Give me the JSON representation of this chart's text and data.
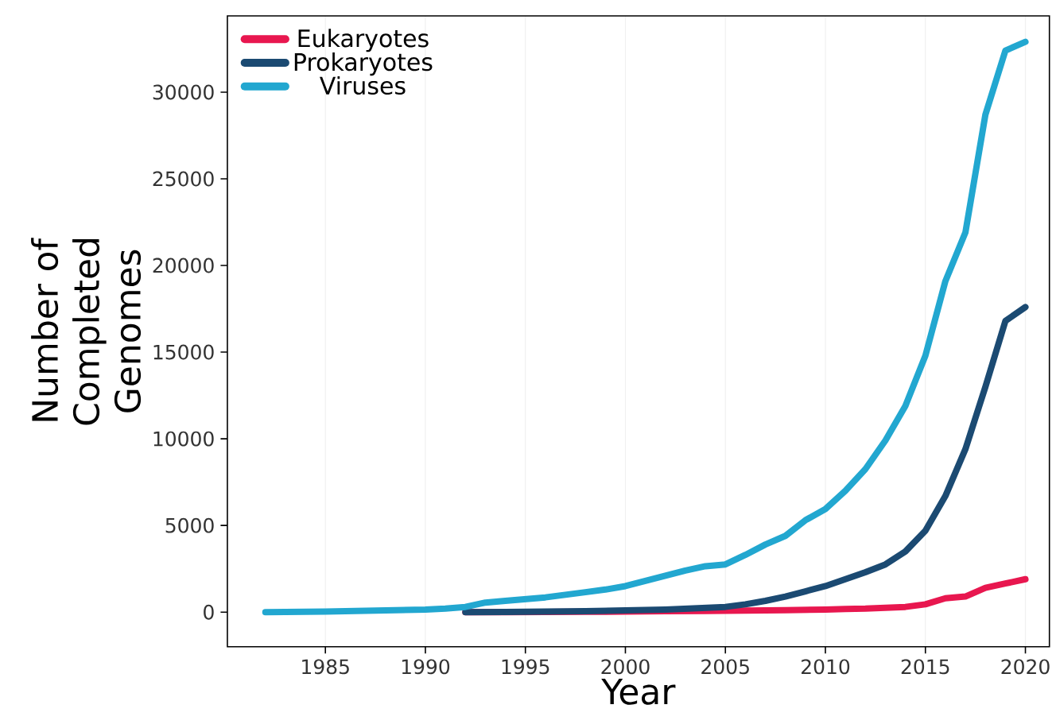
{
  "chart_data": {
    "type": "line",
    "xlabel": "Year",
    "ylabel": "Number of Completed Genomes",
    "xlim": [
      1980.1,
      2021.2
    ],
    "ylim": [
      -2000,
      34400
    ],
    "xticks": [
      1985,
      1990,
      1995,
      2000,
      2005,
      2010,
      2015,
      2020
    ],
    "yticks": [
      0,
      5000,
      10000,
      15000,
      20000,
      25000,
      30000
    ],
    "grid": "x",
    "legend": "top left",
    "marker": "none",
    "line_style": "solid",
    "series": [
      {
        "name": "Eukaryotes",
        "color": "#e8174f",
        "x": [
          1992,
          1994,
          1996,
          1998,
          2000,
          2002,
          2004,
          2006,
          2008,
          2010,
          2011,
          2012,
          2013,
          2014,
          2015,
          2016,
          2017,
          2018,
          2019,
          2020
        ],
        "values": [
          0,
          0,
          10,
          20,
          30,
          50,
          70,
          90,
          110,
          150,
          180,
          200,
          250,
          300,
          450,
          800,
          900,
          1400,
          1650,
          1900
        ]
      },
      {
        "name": "Prokaryotes",
        "color": "#1b4a72",
        "x": [
          1992,
          1994,
          1996,
          1998,
          2000,
          2002,
          2004,
          2005,
          2006,
          2007,
          2008,
          2009,
          2010,
          2011,
          2012,
          2013,
          2014,
          2015,
          2016,
          2017,
          2018,
          2019,
          2020
        ],
        "values": [
          0,
          10,
          30,
          50,
          100,
          150,
          250,
          300,
          450,
          650,
          900,
          1200,
          1500,
          1900,
          2300,
          2750,
          3500,
          4700,
          6700,
          9400,
          13000,
          16800,
          17600
        ]
      },
      {
        "name": "Viruses",
        "color": "#22a7d0",
        "x": [
          1982,
          1985,
          1990,
          1991,
          1992,
          1993,
          1994,
          1995,
          1996,
          1997,
          1998,
          1999,
          2000,
          2001,
          2002,
          2003,
          2004,
          2005,
          2006,
          2007,
          2008,
          2009,
          2010,
          2011,
          2012,
          2013,
          2014,
          2015,
          2016,
          2017,
          2018,
          2019,
          2020
        ],
        "values": [
          0,
          30,
          150,
          200,
          300,
          550,
          650,
          750,
          850,
          1000,
          1150,
          1300,
          1500,
          1800,
          2100,
          2400,
          2650,
          2750,
          3300,
          3900,
          4400,
          5300,
          5950,
          7000,
          8250,
          9900,
          11900,
          14800,
          19100,
          21900,
          28700,
          32400,
          32900
        ]
      }
    ]
  }
}
